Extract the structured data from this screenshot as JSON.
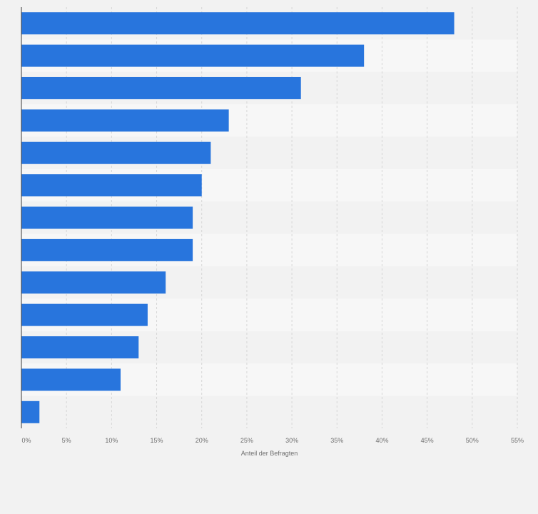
{
  "chart_data": {
    "type": "bar",
    "orientation": "horizontal",
    "title": "",
    "xlabel": "Anteil der Befragten",
    "ylabel": "",
    "xlim": [
      0,
      55
    ],
    "ticks": [
      0,
      5,
      10,
      15,
      20,
      25,
      30,
      35,
      40,
      45,
      50,
      55
    ],
    "tick_labels": [
      "0%",
      "5%",
      "10%",
      "15%",
      "20%",
      "25%",
      "30%",
      "35%",
      "40%",
      "45%",
      "50%",
      "55%"
    ],
    "values": [
      48,
      38,
      31,
      23,
      21,
      20,
      19,
      19,
      16,
      14,
      13,
      11,
      2
    ],
    "bar_color": "#2875dd",
    "grid": true,
    "legend": "none"
  }
}
